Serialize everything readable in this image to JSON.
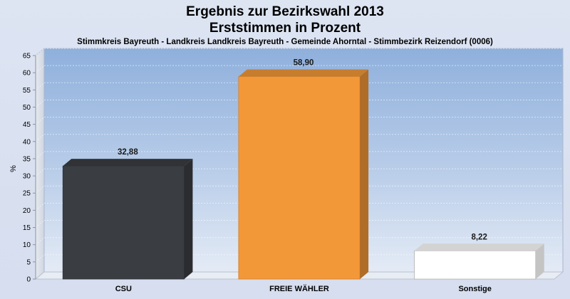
{
  "chart_data": {
    "type": "bar",
    "title": "Ergebnis zur Bezirkswahl 2013",
    "subtitle": "Erststimmen in Prozent",
    "description_line": "Stimmkreis Bayreuth - Landkreis Landkreis Bayreuth - Gemeinde Ahorntal - Stimmbezirk Reizendorf (0006)",
    "ylabel": "%",
    "xlabel": "",
    "ylim": [
      0,
      65
    ],
    "ytick_step": 5,
    "grid": true,
    "categories": [
      "CSU",
      "FREIE WÄHLER",
      "Sonstige"
    ],
    "values": [
      32.88,
      58.9,
      8.22
    ],
    "value_labels": [
      "32,88",
      "58,90",
      "8,22"
    ],
    "colors": [
      "#3a3d42",
      "#f39838",
      "#ffffff"
    ],
    "legend": "none"
  }
}
